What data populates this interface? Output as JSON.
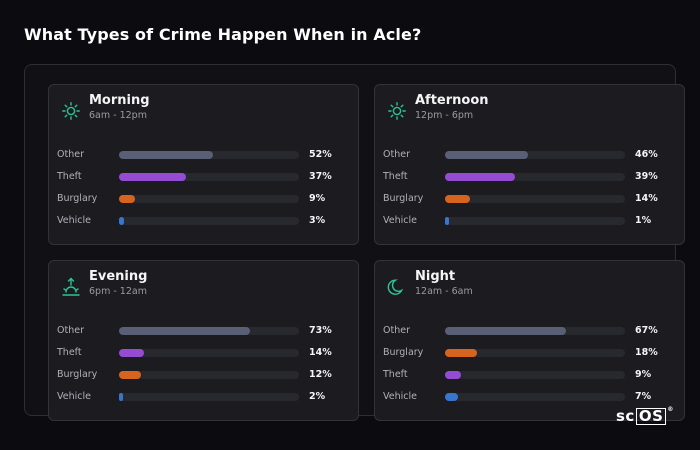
{
  "title": "What Types of Crime Happen When in Acle?",
  "logo": {
    "text_a": "sc",
    "text_b": "OS",
    "mark": "®"
  },
  "colors": {
    "Other": "#5c6378",
    "Theft": "#9a4fdb",
    "Burglary": "#e0681f",
    "Vehicle": "#3a7bd5",
    "icon": "#2ecc9a"
  },
  "chart_data": [
    {
      "type": "bar",
      "title": "Morning",
      "subtitle": "6am - 12pm",
      "icon": "sun-icon",
      "categories": [
        "Other",
        "Theft",
        "Burglary",
        "Vehicle"
      ],
      "values": [
        52,
        37,
        9,
        3
      ],
      "labels": [
        "52%",
        "37%",
        "9%",
        "3%"
      ],
      "xlim": [
        0,
        100
      ]
    },
    {
      "type": "bar",
      "title": "Afternoon",
      "subtitle": "12pm - 6pm",
      "icon": "sun-icon",
      "categories": [
        "Other",
        "Theft",
        "Burglary",
        "Vehicle"
      ],
      "values": [
        46,
        39,
        14,
        1
      ],
      "labels": [
        "46%",
        "39%",
        "14%",
        "1%"
      ],
      "xlim": [
        0,
        100
      ]
    },
    {
      "type": "bar",
      "title": "Evening",
      "subtitle": "6pm - 12am",
      "icon": "sunset-icon",
      "categories": [
        "Other",
        "Theft",
        "Burglary",
        "Vehicle"
      ],
      "values": [
        73,
        14,
        12,
        2
      ],
      "labels": [
        "73%",
        "14%",
        "12%",
        "2%"
      ],
      "xlim": [
        0,
        100
      ]
    },
    {
      "type": "bar",
      "title": "Night",
      "subtitle": "12am - 6am",
      "icon": "moon-icon",
      "categories": [
        "Other",
        "Burglary",
        "Theft",
        "Vehicle"
      ],
      "values": [
        67,
        18,
        9,
        7
      ],
      "labels": [
        "67%",
        "18%",
        "9%",
        "7%"
      ],
      "xlim": [
        0,
        100
      ]
    }
  ]
}
